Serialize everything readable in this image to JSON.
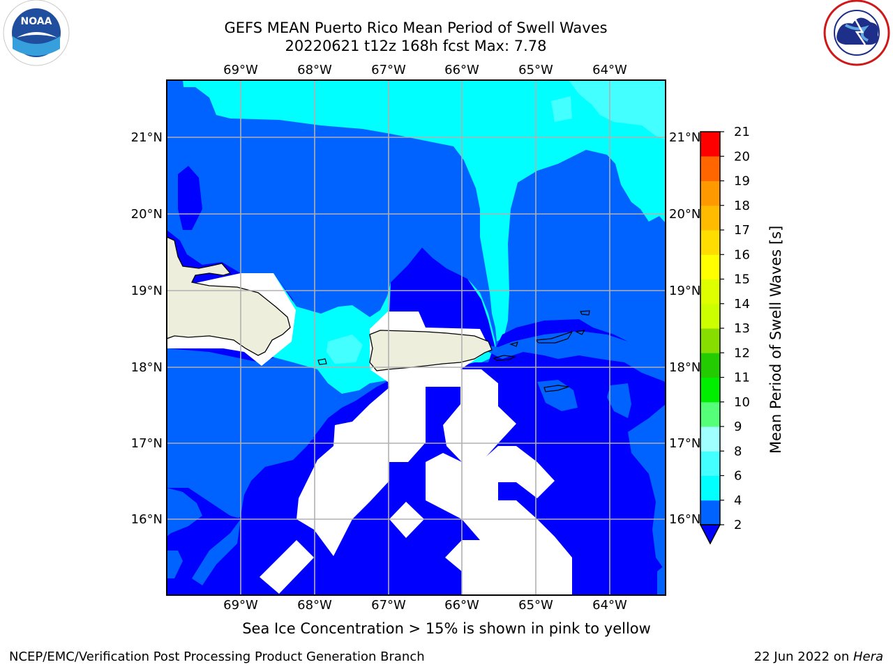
{
  "title": {
    "line1": "GEFS MEAN Puerto Rico Mean Period of Swell Waves",
    "line2": "20220621 t12z 168h fcst   Max: 7.78"
  },
  "map": {
    "lon_labels": [
      "69°W",
      "68°W",
      "67°W",
      "66°W",
      "65°W",
      "64°W"
    ],
    "lat_labels": [
      "21°N",
      "20°N",
      "19°N",
      "18°N",
      "17°N",
      "16°N"
    ],
    "fill_colors": {
      "band_2_4": "#0063ff",
      "band_below_2": "#0000ff",
      "band_4_6": "#00ffff",
      "band_6_8": "#44ffff",
      "land": "#eeeedd",
      "missing": "#ffffff",
      "grid": "#b0b0b0"
    }
  },
  "colorbar": {
    "label": "Mean Period of Swell Waves [s]",
    "ticks": [
      "2",
      "4",
      "6",
      "8",
      "9",
      "10",
      "11",
      "12",
      "13",
      "14",
      "15",
      "16",
      "17",
      "18",
      "19",
      "20",
      "21"
    ],
    "colors": [
      "#0063ff",
      "#00ffff",
      "#44ffff",
      "#a0ffff",
      "#55ff77",
      "#00ee00",
      "#22cc00",
      "#88dd00",
      "#ccff00",
      "#ddff00",
      "#ffff00",
      "#ffdd00",
      "#ffbb00",
      "#ff9900",
      "#ff6600",
      "#ff3300",
      "#ff0000"
    ],
    "extend_color": "#0000ff"
  },
  "note": "Sea Ice Concentration > 15% is shown in pink to yellow",
  "footer": {
    "left": "NCEP/EMC/Verification Post Processing Product Generation Branch",
    "date": "22 Jun 2022 on ",
    "machine": "Hera"
  },
  "logos": {
    "left": "NOAA",
    "right": "NATIONAL WEATHER SERVICE"
  }
}
